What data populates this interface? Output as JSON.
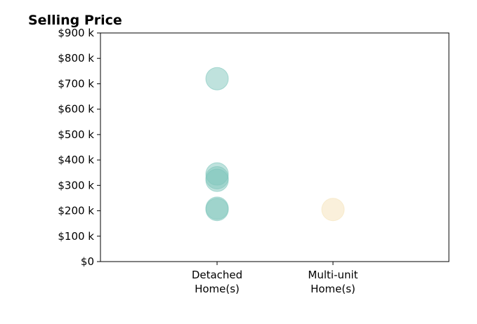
{
  "chart_data": {
    "type": "scatter",
    "title": "Selling Price",
    "xlabel": "",
    "ylabel": "",
    "categories": [
      "Detached Home(s)",
      "Multi-unit Home(s)"
    ],
    "category_lines": [
      [
        "Detached",
        "Home(s)"
      ],
      [
        "Multi-unit",
        "Home(s)"
      ]
    ],
    "ylim": [
      0,
      900000
    ],
    "yticks": [
      0,
      100000,
      200000,
      300000,
      400000,
      500000,
      600000,
      700000,
      800000,
      900000
    ],
    "ytick_labels": [
      "$0",
      "$100 k",
      "$200 k",
      "$300 k",
      "$400 k",
      "$500 k",
      "$600 k",
      "$700 k",
      "$800 k",
      "$900 k"
    ],
    "grid": false,
    "series": [
      {
        "category": "Detached Home(s)",
        "color": "#7fc6bc",
        "values": [
          720000,
          345000,
          330000,
          320000,
          210000,
          205000
        ]
      },
      {
        "category": "Multi-unit Home(s)",
        "color": "#f5e2b8",
        "values": [
          205000
        ]
      }
    ]
  }
}
